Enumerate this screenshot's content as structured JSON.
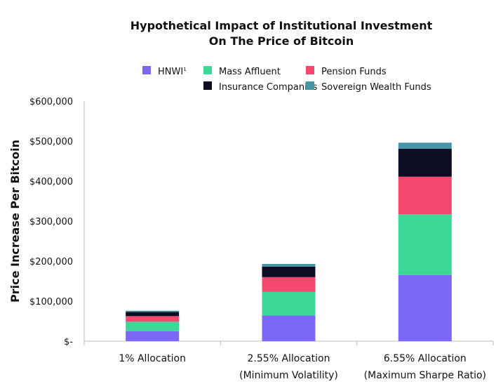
{
  "chart_data": {
    "type": "bar",
    "stacked": true,
    "title": [
      "Hypothetical Impact of Institutional Investment",
      "On The Price of Bitcoin"
    ],
    "xlabel": "",
    "ylabel": "Price Increase Per Bitcoin",
    "ylim": [
      0,
      600000
    ],
    "yticks": [
      0,
      100000,
      200000,
      300000,
      400000,
      500000,
      600000
    ],
    "ytick_labels": [
      "$-",
      "$100,000",
      "$200,000",
      "$300,000",
      "$400,000",
      "$500,000",
      "$600,000"
    ],
    "grid": false,
    "legend_position": "top",
    "categories": [
      [
        "1% Allocation"
      ],
      [
        "2.55% Allocation",
        "(Minimum Volatility)"
      ],
      [
        "6.55% Allocation",
        "(Maximum Sharpe Ratio)"
      ]
    ],
    "series": [
      {
        "name": "HNWI",
        "superscript": "1",
        "color": "#7b68f6",
        "values": [
          25000,
          64000,
          165000
        ]
      },
      {
        "name": "Mass Affluent",
        "color": "#3dd897",
        "values": [
          23500,
          59000,
          152000
        ]
      },
      {
        "name": "Pension Funds",
        "color": "#f4496f",
        "values": [
          14000,
          37000,
          94000
        ]
      },
      {
        "name": "Insurance Companies",
        "color": "#0c0c22",
        "values": [
          10500,
          26000,
          70000
        ]
      },
      {
        "name": "Sovereign Wealth Funds",
        "color": "#4595a5",
        "values": [
          3000,
          7000,
          15000
        ]
      }
    ]
  }
}
